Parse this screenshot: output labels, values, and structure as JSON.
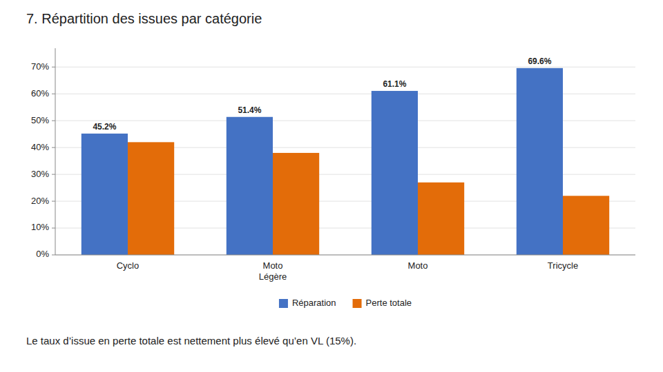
{
  "chart_data": {
    "type": "bar",
    "title": "7.  Répartition des issues par catégorie",
    "subtitle": "Le taux d’issue en perte totale est nettement plus élevé qu’en VL (15%).",
    "categories": [
      "Cyclo",
      "Moto\nLégère",
      "Moto",
      "Tricycle"
    ],
    "series": [
      {
        "name": "Réparation",
        "color": "#4472C4",
        "values": [
          45.2,
          51.4,
          61.1,
          69.6
        ],
        "value_labels": [
          "45.2%",
          "51.4%",
          "61.1%",
          "69.6%"
        ],
        "data_labels": true
      },
      {
        "name": "Perte totale",
        "color": "#E36C09",
        "values": [
          42.0,
          38.0,
          27.0,
          22.0
        ]
      }
    ],
    "ylim": [
      0,
      77
    ],
    "yticks": [
      {
        "value": 0,
        "label": "0%"
      },
      {
        "value": 10,
        "label": "10%"
      },
      {
        "value": 20,
        "label": "20%"
      },
      {
        "value": 30,
        "label": "30%"
      },
      {
        "value": 40,
        "label": "40%"
      },
      {
        "value": 50,
        "label": "50%"
      },
      {
        "value": 60,
        "label": "60%"
      },
      {
        "value": 70,
        "label": "70%"
      }
    ],
    "grid": true,
    "legend": "bottom"
  }
}
